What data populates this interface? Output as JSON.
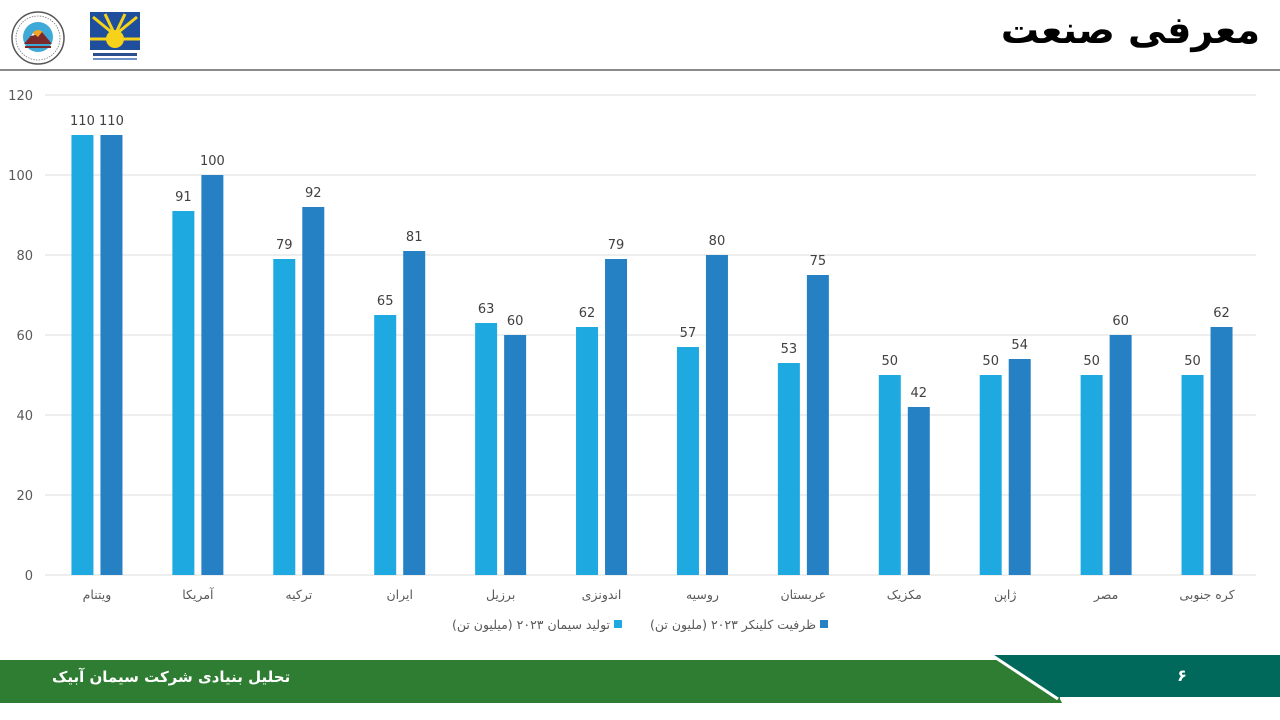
{
  "header": {
    "title": "معرفی صنعت",
    "logos": [
      "insurance-emblem-logo",
      "stock-exchange-sun-logo"
    ]
  },
  "footer": {
    "text": "تحلیل بنیادی شرکت سیمان آبیک",
    "page_number": "۶",
    "colors": {
      "primary": "#2e7d32",
      "secondary": "#00695c"
    }
  },
  "legend": {
    "items": [
      {
        "label": "تولید سیمان ۲۰۲۳ (میلیون تن)",
        "color": "#1ea9e1"
      },
      {
        "label": "ظرفیت کلینکر ۲۰۲۳ (ملیون تن)",
        "color": "#2680c4"
      }
    ]
  },
  "chart_data": {
    "type": "bar",
    "title": "",
    "xlabel": "",
    "ylabel": "",
    "ylim": [
      0,
      120
    ],
    "yticks": [
      0,
      20,
      40,
      60,
      80,
      100,
      120
    ],
    "grid": true,
    "legend_position": "bottom",
    "categories": [
      "ویتنام",
      "آمریکا",
      "ترکیه",
      "ایران",
      "برزیل",
      "اندونزی",
      "روسیه",
      "عربستان",
      "مکزیک",
      "ژاپن",
      "مصر",
      "کره جنوبی"
    ],
    "series": [
      {
        "name": "تولید سیمان ۲۰۲۳ (میلیون تن)",
        "color": "#1ea9e1",
        "values": [
          110,
          91,
          79,
          65,
          63,
          62,
          57,
          53,
          50,
          50,
          50,
          50
        ]
      },
      {
        "name": "ظرفیت کلینکر ۲۰۲۳ (ملیون تن)",
        "color": "#2680c4",
        "values": [
          110,
          100,
          92,
          81,
          60,
          79,
          80,
          75,
          42,
          54,
          60,
          62
        ]
      }
    ]
  }
}
